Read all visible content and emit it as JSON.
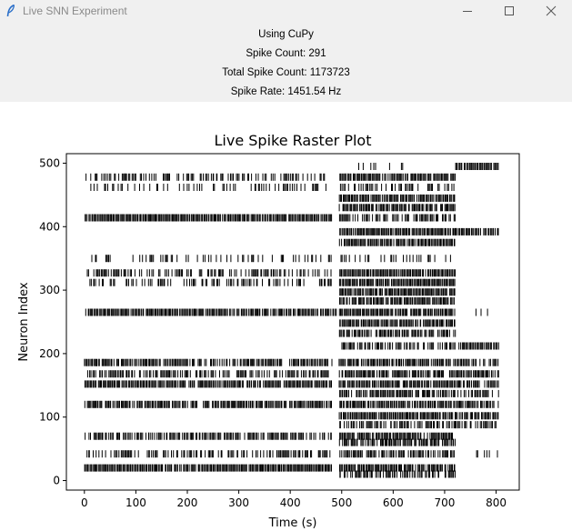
{
  "window": {
    "title": "Live SNN Experiment",
    "icon": "feather-icon",
    "controls": [
      "minimize-icon",
      "maximize-icon",
      "close-icon"
    ]
  },
  "info": {
    "backend": "Using CuPy",
    "spike_count": "Spike Count: 291",
    "total_spike_count": "Total Spike Count: 1173723",
    "spike_rate": "Spike Rate: 1451.54 Hz"
  },
  "chart_data": {
    "type": "scatter",
    "marker": "vertical-tick",
    "title": "Live Spike Raster Plot",
    "xlabel": "Time (s)",
    "ylabel": "Neuron Index",
    "xlim": [
      -35,
      845
    ],
    "ylim": [
      -15,
      515
    ],
    "xticks": [
      0,
      100,
      200,
      300,
      400,
      500,
      600,
      700,
      800
    ],
    "yticks": [
      0,
      100,
      200,
      300,
      400,
      500
    ],
    "grid": false,
    "legend": "none",
    "color": "#000000",
    "series": [
      {
        "row": 478,
        "segments": [
          [
            0,
            480,
            0.5
          ],
          [
            495,
            720,
            0.85
          ]
        ]
      },
      {
        "row": 462,
        "segments": [
          [
            5,
            470,
            0.3
          ],
          [
            495,
            720,
            0.4
          ]
        ]
      },
      {
        "row": 445,
        "segments": [
          [
            495,
            720,
            0.9
          ]
        ]
      },
      {
        "row": 430,
        "segments": [
          [
            495,
            720,
            0.9
          ]
        ]
      },
      {
        "row": 414,
        "segments": [
          [
            0,
            480,
            0.95
          ],
          [
            495,
            720,
            0.6
          ]
        ]
      },
      {
        "row": 392,
        "segments": [
          [
            495,
            720,
            0.95
          ],
          [
            720,
            805,
            0.9
          ]
        ]
      },
      {
        "row": 375,
        "segments": [
          [
            495,
            720,
            0.95
          ]
        ]
      },
      {
        "row": 350,
        "segments": [
          [
            5,
            480,
            0.3
          ],
          [
            495,
            720,
            0.35
          ]
        ]
      },
      {
        "row": 327,
        "segments": [
          [
            5,
            480,
            0.5
          ],
          [
            495,
            720,
            0.95
          ]
        ]
      },
      {
        "row": 312,
        "segments": [
          [
            10,
            480,
            0.45
          ],
          [
            495,
            720,
            0.95
          ]
        ]
      },
      {
        "row": 297,
        "segments": [
          [
            495,
            720,
            0.95
          ]
        ]
      },
      {
        "row": 283,
        "segments": [
          [
            495,
            720,
            0.9
          ]
        ]
      },
      {
        "row": 265,
        "segments": [
          [
            0,
            490,
            0.9
          ],
          [
            495,
            720,
            0.95
          ],
          [
            740,
            790,
            0.1
          ]
        ]
      },
      {
        "row": 248,
        "segments": [
          [
            495,
            720,
            0.9
          ]
        ]
      },
      {
        "row": 232,
        "segments": [
          [
            495,
            720,
            0.8
          ]
        ]
      },
      {
        "row": 212,
        "segments": [
          [
            495,
            720,
            0.6
          ],
          [
            720,
            805,
            0.9
          ]
        ]
      },
      {
        "row": 186,
        "segments": [
          [
            0,
            480,
            0.8
          ],
          [
            495,
            720,
            0.85
          ],
          [
            720,
            805,
            0.7
          ]
        ]
      },
      {
        "row": 168,
        "segments": [
          [
            5,
            480,
            0.6
          ],
          [
            495,
            720,
            0.8
          ],
          [
            720,
            805,
            0.9
          ]
        ]
      },
      {
        "row": 152,
        "segments": [
          [
            0,
            480,
            0.9
          ],
          [
            495,
            720,
            0.9
          ],
          [
            720,
            805,
            0.7
          ]
        ]
      },
      {
        "row": 137,
        "segments": [
          [
            495,
            720,
            0.8
          ],
          [
            720,
            805,
            0.6
          ]
        ]
      },
      {
        "row": 120,
        "segments": [
          [
            0,
            480,
            0.85
          ],
          [
            495,
            720,
            0.95
          ],
          [
            720,
            805,
            0.8
          ]
        ]
      },
      {
        "row": 102,
        "segments": [
          [
            495,
            720,
            0.95
          ],
          [
            720,
            805,
            0.9
          ]
        ]
      },
      {
        "row": 88,
        "segments": [
          [
            495,
            720,
            0.6
          ],
          [
            720,
            805,
            0.6
          ]
        ]
      },
      {
        "row": 70,
        "segments": [
          [
            0,
            480,
            0.7
          ],
          [
            495,
            720,
            0.9
          ]
        ]
      },
      {
        "row": 60,
        "segments": [
          [
            495,
            720,
            0.85
          ]
        ]
      },
      {
        "row": 42,
        "segments": [
          [
            5,
            480,
            0.5
          ],
          [
            495,
            720,
            0.7
          ],
          [
            720,
            805,
            0.1
          ]
        ]
      },
      {
        "row": 20,
        "segments": [
          [
            0,
            480,
            0.95
          ],
          [
            495,
            720,
            0.95
          ]
        ]
      },
      {
        "row": 10,
        "segments": [
          [
            495,
            720,
            0.6
          ]
        ]
      },
      {
        "row": 495,
        "segments": [
          [
            720,
            805,
            0.95
          ],
          [
            530,
            620,
            0.2
          ]
        ]
      }
    ]
  }
}
